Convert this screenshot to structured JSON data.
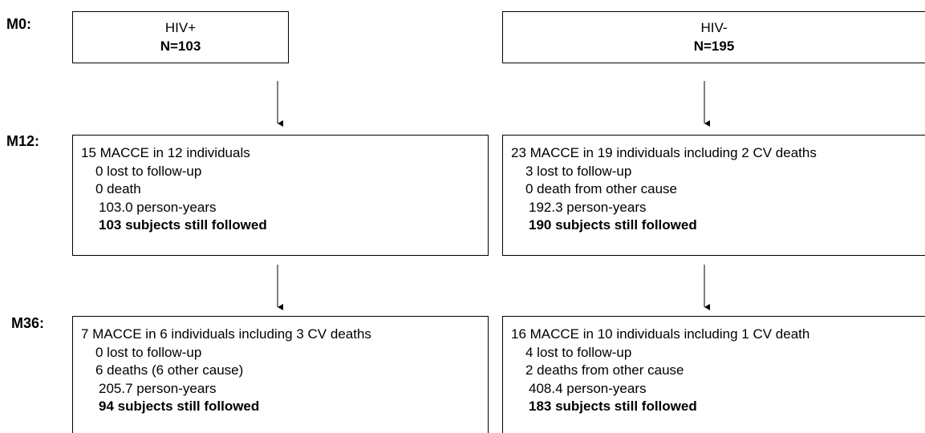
{
  "stages": [
    {
      "label": "M0:",
      "boxes": [
        {
          "group": "HIV+",
          "n": "N=103"
        },
        {
          "group": "HIV-",
          "n": "N=195"
        }
      ]
    },
    {
      "label": "M12:",
      "boxes": [
        {
          "lines": [
            "15 MACCE in 12 individuals",
            "0 lost to follow-up",
            "0 death",
            "103.0 person-years"
          ],
          "followed": "103 subjects still followed"
        },
        {
          "lines": [
            "23 MACCE in 19 individuals including 2 CV deaths",
            "3 lost to follow-up",
            "0 death from other cause",
            "192.3 person-years"
          ],
          "followed": "190 subjects still followed"
        }
      ]
    },
    {
      "label": "M36:",
      "boxes": [
        {
          "lines": [
            "7 MACCE in 6 individuals including 3 CV deaths",
            "0 lost to follow-up",
            "6 deaths (6 other cause)",
            "205.7 person-years"
          ],
          "followed": "94 subjects still followed"
        },
        {
          "lines": [
            "16 MACCE in 10 individuals including 1 CV death",
            "4 lost to follow-up",
            "2 deaths from other cause",
            "408.4 person-years"
          ],
          "followed": "183 subjects still followed"
        }
      ]
    }
  ]
}
